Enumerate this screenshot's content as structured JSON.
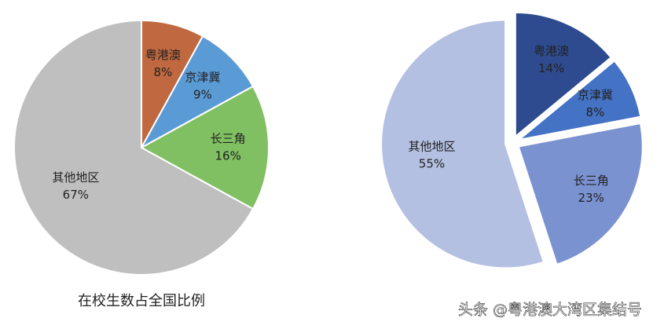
{
  "chart_data": [
    {
      "type": "pie",
      "title": "在校生数占全国比例",
      "categories": [
        "粤港澳",
        "京津冀",
        "长三角",
        "其他地区"
      ],
      "values": [
        8,
        9,
        16,
        67
      ],
      "value_labels": [
        "8%",
        "9%",
        "16%",
        "67%"
      ],
      "colors": [
        "#c0683f",
        "#5b9bd5",
        "#80bf62",
        "#bfbfbf"
      ],
      "exploded": false
    },
    {
      "type": "pie",
      "categories": [
        "粤港澳",
        "京津冀",
        "长三角",
        "其他地区"
      ],
      "values": [
        14,
        8,
        23,
        55
      ],
      "value_labels": [
        "14%",
        "8%",
        "23%",
        "55%"
      ],
      "colors": [
        "#2f4b8f",
        "#4472c4",
        "#7b92d1",
        "#b4c0e1"
      ],
      "exploded": true
    }
  ],
  "watermark": "头条 @粤港澳大湾区集结号"
}
